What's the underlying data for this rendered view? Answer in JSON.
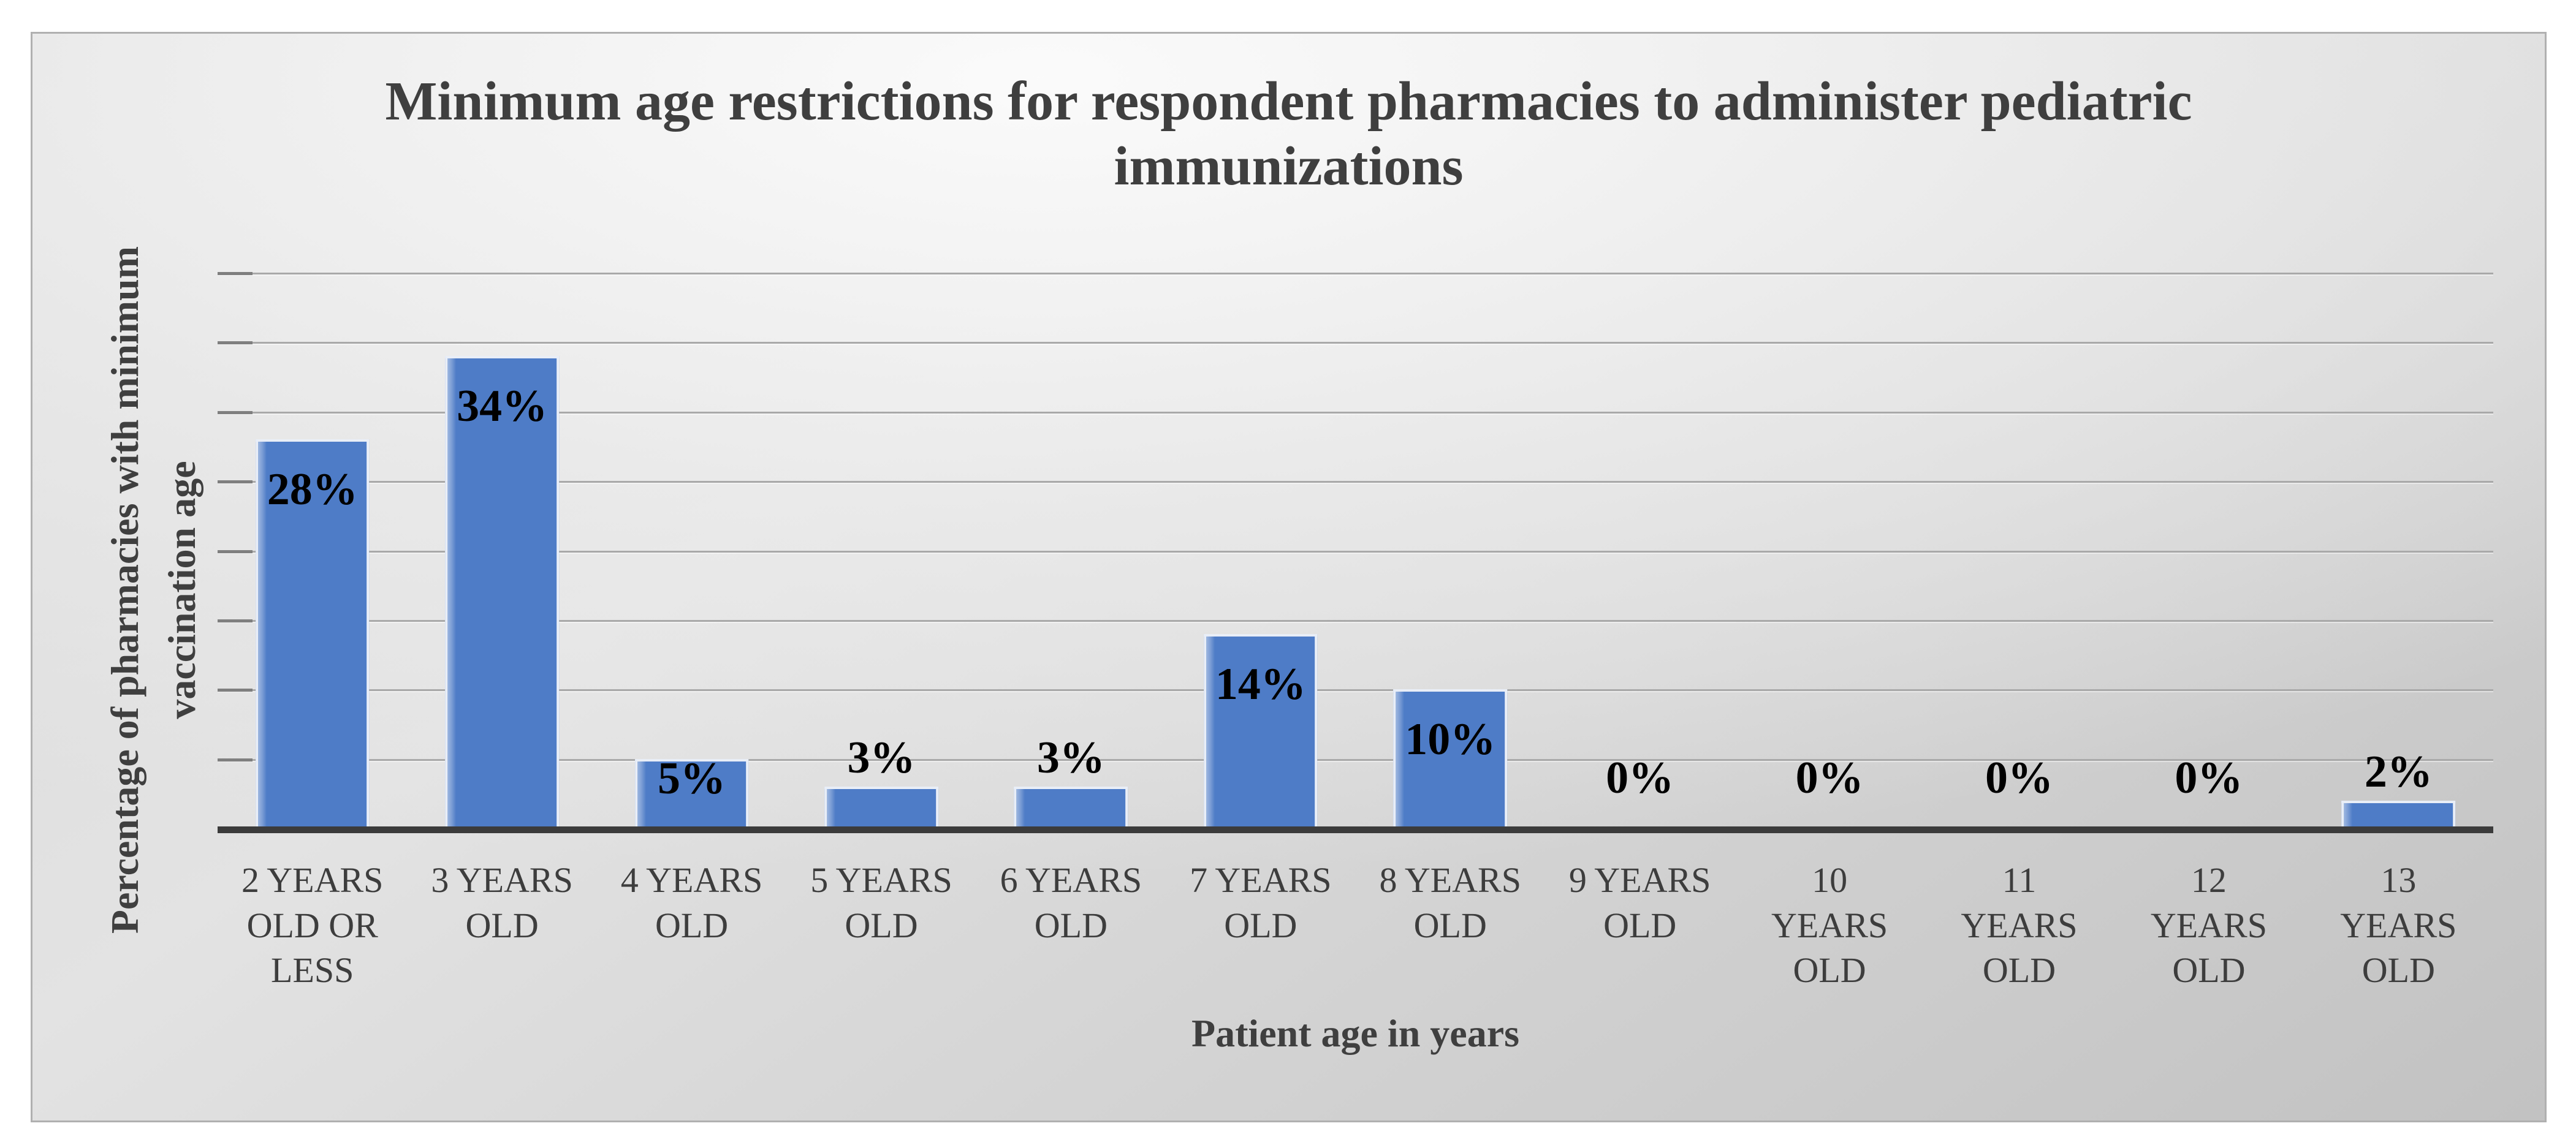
{
  "figure": {
    "title_line1": "Minimum age restrictions for respondent pharmacies to administer pediatric",
    "title_line2": "immunizations"
  },
  "chart_data": {
    "type": "bar",
    "title": "Minimum age restrictions for respondent pharmacies to administer pediatric immunizations",
    "categories": [
      "2 YEARS OLD OR LESS",
      "3 YEARS OLD",
      "4 YEARS OLD",
      "5 YEARS OLD",
      "6 YEARS OLD",
      "7 YEARS OLD",
      "8 YEARS OLD",
      "9 YEARS OLD",
      "10 YEARS OLD",
      "11 YEARS OLD",
      "12 YEARS OLD",
      "13 YEARS OLD"
    ],
    "values": [
      28,
      34,
      5,
      3,
      3,
      14,
      10,
      0,
      0,
      0,
      0,
      2
    ],
    "data_labels": [
      "28%",
      "34%",
      "5%",
      "3%",
      "3%",
      "14%",
      "10%",
      "0%",
      "0%",
      "0%",
      "0%",
      "2%"
    ],
    "xlabel": "Patient age in years",
    "ylabel": "Percentage of pharmacies with minimum vaccination age",
    "ylabel_line1": "Percentage of pharmacies with minimum",
    "ylabel_line2": "vaccination age",
    "ylim": [
      0,
      40
    ],
    "gridline_step": 5,
    "y_axis_tick_labels_visible": false,
    "legend": "none",
    "grid": "horizontal",
    "colors": {
      "bar": "#4e7cc7",
      "axis": "#3b3b3b",
      "gridline": "#a9a9a9",
      "tick": "#7f7f7f",
      "text": "#3f3f3f",
      "data_label": "#000000"
    }
  }
}
